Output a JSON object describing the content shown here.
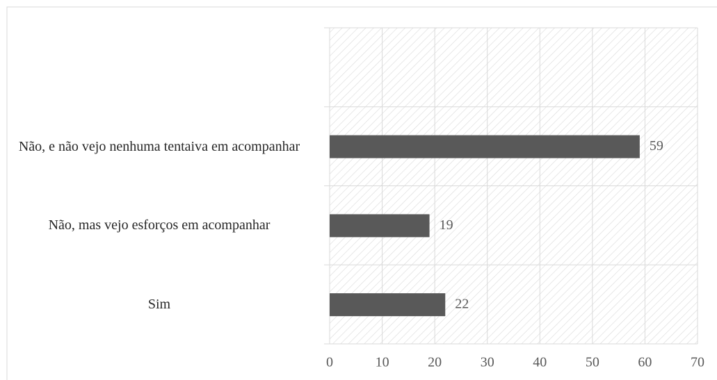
{
  "chart_data": {
    "type": "bar",
    "orientation": "horizontal",
    "categories": [
      "Sim",
      "Não, mas vejo esforços em acompanhar",
      "Não, e não vejo nenhuma tentaiva em acompanhar",
      null
    ],
    "values": [
      22,
      19,
      59,
      null
    ],
    "color": "#595959",
    "xlim": [
      0,
      70
    ],
    "xticks": [
      0,
      10,
      20,
      30,
      40,
      50,
      60,
      70
    ],
    "grid": true
  }
}
